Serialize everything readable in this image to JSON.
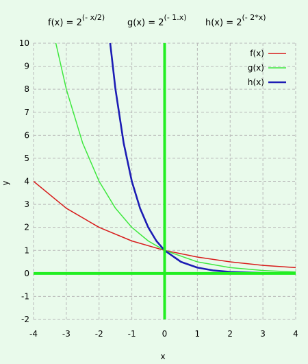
{
  "chart_data": {
    "type": "line",
    "xlabel": "x",
    "ylabel": "y",
    "xlim": [
      -4,
      4
    ],
    "ylim": [
      -2,
      10
    ],
    "xticks": [
      "-4",
      "-3",
      "-2",
      "-1",
      "0",
      "1",
      "2",
      "3",
      "4"
    ],
    "yticks": [
      "10",
      "9",
      "8",
      "7",
      "6",
      "5",
      "4",
      "3",
      "2",
      "1",
      "0",
      "-1",
      "-2"
    ],
    "grid": true,
    "legend_position": "top-right",
    "formulas": [
      {
        "name": "f(x) = ",
        "base": "2",
        "exponent": "(- x/2)"
      },
      {
        "name": "g(x) = ",
        "base": "2",
        "exponent": "(- 1.x)"
      },
      {
        "name": "h(x) = ",
        "base": "2",
        "exponent": "(- 2*x)"
      }
    ],
    "series": [
      {
        "name": "f(x)",
        "color": "#d81b1b",
        "points": [
          [
            -4,
            4.0
          ],
          [
            -3,
            2.83
          ],
          [
            -2,
            2.0
          ],
          [
            -1,
            1.41
          ],
          [
            0,
            1.0
          ],
          [
            1,
            0.71
          ],
          [
            2,
            0.5
          ],
          [
            3,
            0.35
          ],
          [
            4,
            0.25
          ]
        ]
      },
      {
        "name": "g(x)",
        "color": "#3ee83e",
        "points": [
          [
            -3.32,
            10.0
          ],
          [
            -3,
            8.0
          ],
          [
            -2.5,
            5.66
          ],
          [
            -2,
            4.0
          ],
          [
            -1.5,
            2.83
          ],
          [
            -1,
            2.0
          ],
          [
            -0.5,
            1.41
          ],
          [
            0,
            1.0
          ],
          [
            1,
            0.5
          ],
          [
            2,
            0.25
          ],
          [
            3,
            0.125
          ],
          [
            4,
            0.0625
          ]
        ]
      },
      {
        "name": "h(x)",
        "color": "#1c1cb4",
        "points": [
          [
            -1.66,
            10.0
          ],
          [
            -1.5,
            8.0
          ],
          [
            -1.25,
            5.66
          ],
          [
            -1,
            4.0
          ],
          [
            -0.75,
            2.83
          ],
          [
            -0.5,
            2.0
          ],
          [
            -0.25,
            1.41
          ],
          [
            0,
            1.0
          ],
          [
            0.5,
            0.5
          ],
          [
            1,
            0.25
          ],
          [
            1.5,
            0.125
          ],
          [
            2,
            0.0625
          ],
          [
            3,
            0.0156
          ],
          [
            4,
            0.0039
          ]
        ]
      }
    ],
    "zero_axis_color": "#22ee22"
  }
}
